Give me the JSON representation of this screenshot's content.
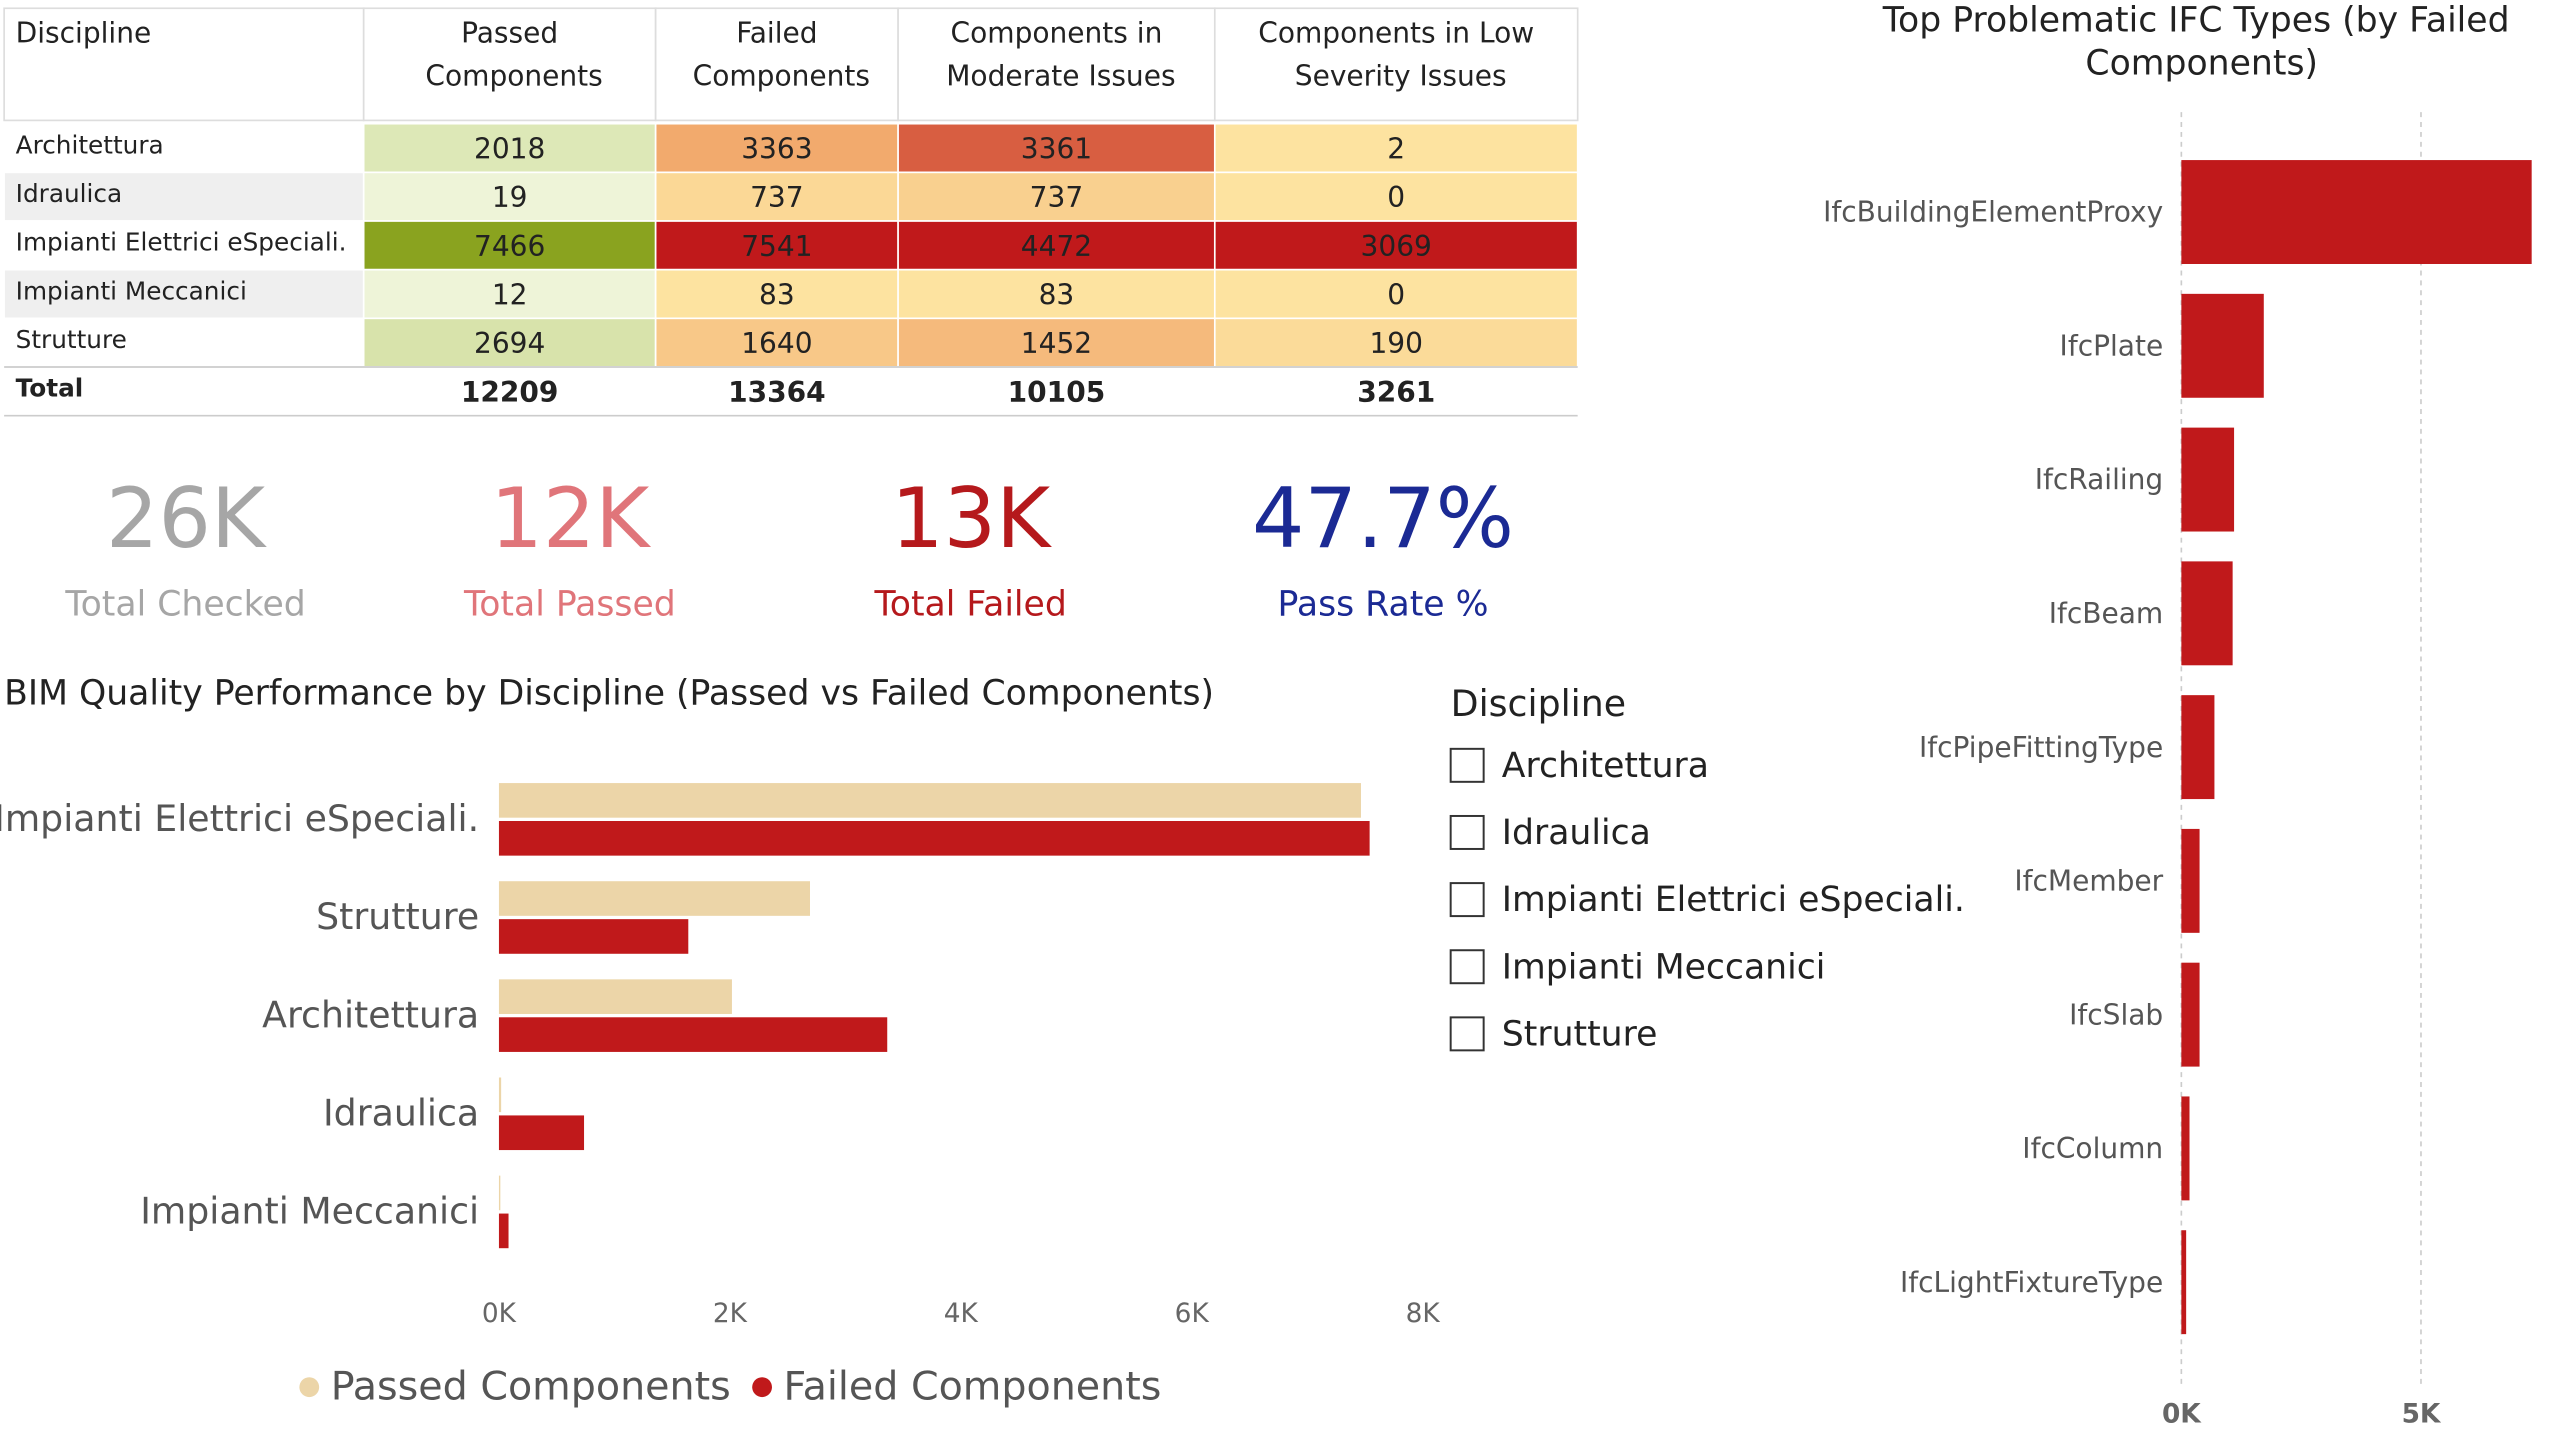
{
  "table": {
    "columns": [
      "Discipline",
      "Passed Components",
      "Failed Components",
      "Components in Moderate Issues",
      "Components in Low Severity Issues"
    ],
    "rows": [
      [
        "Architettura",
        2018,
        3363,
        3361,
        2
      ],
      [
        "Idraulica",
        19,
        737,
        737,
        0
      ],
      [
        "Impianti Elettrici eSpeciali.",
        7466,
        7541,
        4472,
        3069
      ],
      [
        "Impianti Meccanici",
        12,
        83,
        83,
        0
      ],
      [
        "Strutture",
        2694,
        1640,
        1452,
        190
      ]
    ],
    "total": [
      "Total",
      12209,
      13364,
      10105,
      3261
    ]
  },
  "kpis": [
    {
      "value": "26K",
      "label": "Total Checked",
      "color": "#a6a6a6"
    },
    {
      "value": "12K",
      "label": "Total Passed",
      "color": "#e0757a"
    },
    {
      "value": "13K",
      "label": "Total Failed",
      "color": "#b5191c"
    },
    {
      "value": "47.7%",
      "label": "Pass Rate %",
      "color": "#1b2a94"
    }
  ],
  "slicer": {
    "title": "Discipline",
    "items": [
      "Architettura",
      "Idraulica",
      "Impianti Elettrici eSpeciali.",
      "Impianti Meccanici",
      "Strutture"
    ]
  },
  "chart_data": [
    {
      "type": "bar",
      "orientation": "horizontal",
      "title": "BIM Quality Performance by Discipline (Passed vs Failed Components)",
      "categories": [
        "Impianti Elettrici eSpeciali.",
        "Strutture",
        "Architettura",
        "Idraulica",
        "Impianti Meccanici"
      ],
      "series": [
        {
          "name": "Passed Components",
          "color": "#ecd5a8",
          "values": [
            7466,
            2694,
            2018,
            19,
            12
          ]
        },
        {
          "name": "Failed Components",
          "color": "#c0191b",
          "values": [
            7541,
            1640,
            3363,
            737,
            83
          ]
        }
      ],
      "xlim": [
        0,
        8000
      ],
      "xticks": [
        {
          "value": 0,
          "label": "0K"
        },
        {
          "value": 2000,
          "label": "2K"
        },
        {
          "value": 4000,
          "label": "4K"
        },
        {
          "value": 6000,
          "label": "6K"
        },
        {
          "value": 8000,
          "label": "8K"
        }
      ],
      "grid": false,
      "legend": "bottom"
    },
    {
      "type": "bar",
      "orientation": "horizontal",
      "title": "Top Problematic IFC Types (by Failed Components)",
      "categories": [
        "IfcBuildingElementProxy",
        "IfcPlate",
        "IfcRailing",
        "IfcBeam",
        "IfcPipeFittingType",
        "IfcMember",
        "IfcSlab",
        "IfcColumn",
        "IfcLightFixtureType"
      ],
      "values": [
        7310,
        1720,
        1100,
        1070,
        690,
        380,
        380,
        170,
        100
      ],
      "color": "#c0191b",
      "xlim": [
        0,
        7400
      ],
      "xticks": [
        {
          "value": 0,
          "label": "0K"
        },
        {
          "value": 5000,
          "label": "5K"
        }
      ],
      "grid": true
    }
  ]
}
